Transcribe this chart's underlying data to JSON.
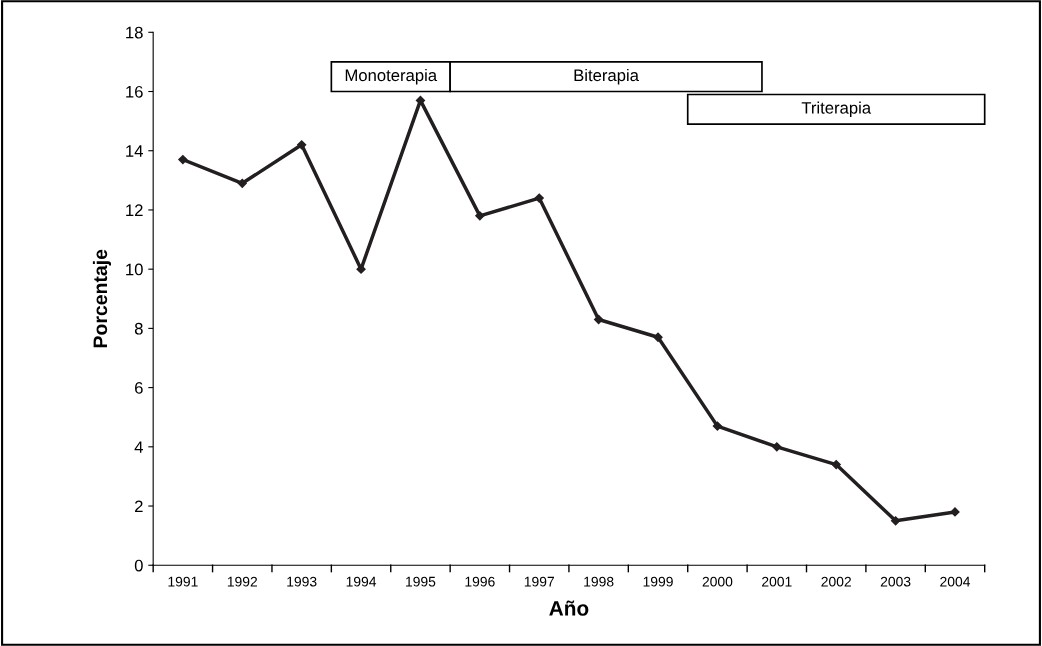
{
  "chart_data": {
    "type": "line",
    "xlabel": "Año",
    "ylabel": "Porcentaje",
    "categories": [
      "1991",
      "1992",
      "1993",
      "1994",
      "1995",
      "1996",
      "1997",
      "1998",
      "1999",
      "2000",
      "2001",
      "2002",
      "2003",
      "2004"
    ],
    "series": [
      {
        "color": "#231f20",
        "values": [
          13.7,
          12.9,
          14.2,
          10.0,
          15.7,
          11.8,
          12.4,
          8.3,
          7.7,
          4.7,
          4.0,
          3.4,
          1.5,
          1.8
        ]
      }
    ],
    "ylim": [
      0,
      18
    ],
    "yticks": [
      0,
      2,
      4,
      6,
      8,
      10,
      12,
      14,
      16,
      18
    ],
    "grid": false,
    "marker": "diamond",
    "line_style": "solid",
    "annotations": [
      "Monoterapia",
      "Biterapia",
      "Triterapia"
    ]
  }
}
